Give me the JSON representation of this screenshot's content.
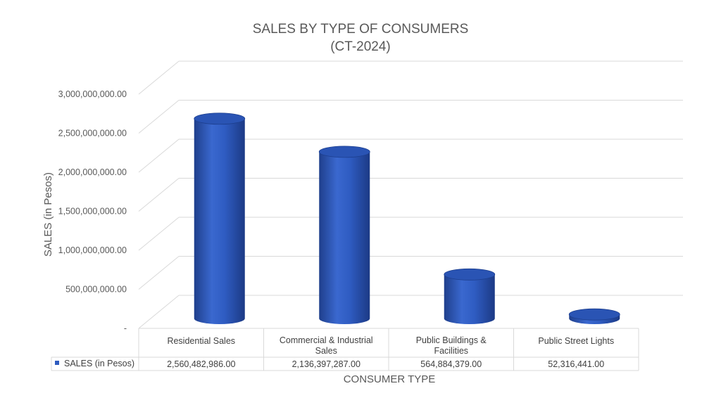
{
  "chart_data": {
    "type": "bar",
    "title": [
      "SALES BY TYPE OF CONSUMERS",
      "(CT-2024)"
    ],
    "xlabel": "CONSUMER TYPE",
    "ylabel": "SALES (in Pesos)",
    "categories": [
      [
        "Residential Sales"
      ],
      [
        "Commercial & Industrial",
        "Sales"
      ],
      [
        "Public Buildings &",
        "Facilities"
      ],
      [
        "Public Street Lights"
      ]
    ],
    "series": [
      {
        "name": "SALES (in Pesos)",
        "values": [
          2560482986.0,
          2136397287.0,
          564884379.0,
          52316441.0
        ],
        "value_labels": [
          "2,560,482,986.00",
          "2,136,397,287.00",
          "564,884,379.00",
          "52,316,441.00"
        ],
        "color": "#2E5BBF"
      }
    ],
    "ylim": [
      0,
      3000000000
    ],
    "y_ticks": [
      {
        "value": 0,
        "label": "-"
      },
      {
        "value": 500000000,
        "label": "500,000,000.00"
      },
      {
        "value": 1000000000,
        "label": "1,000,000,000.00"
      },
      {
        "value": 1500000000,
        "label": "1,500,000,000.00"
      },
      {
        "value": 2000000000,
        "label": "2,000,000,000.00"
      },
      {
        "value": 2500000000,
        "label": "2,500,000,000.00"
      },
      {
        "value": 3000000000,
        "label": "3,000,000,000.00"
      }
    ],
    "grid": true,
    "legend": "data-table",
    "bar_shape": "cylinder"
  }
}
